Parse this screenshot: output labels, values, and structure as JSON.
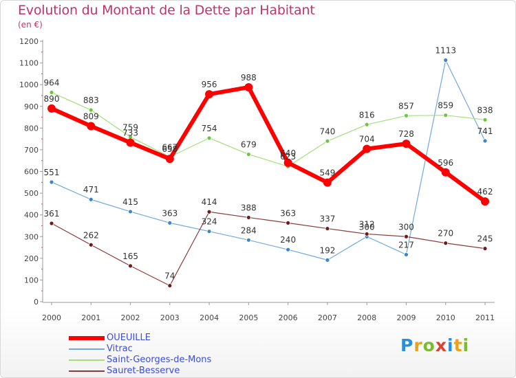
{
  "title": "Evolution du Montant de la Dette par Habitant",
  "subtitle": "(en €)",
  "logo": {
    "text": "Proxiti",
    "letters": [
      {
        "ch": "P",
        "color": "#2a8fd8"
      },
      {
        "ch": "r",
        "color": "#e8a21e"
      },
      {
        "ch": "o",
        "color": "#7cba2e"
      },
      {
        "ch": "x",
        "color": "#d9432f"
      },
      {
        "ch": "i",
        "color": "#2a8fd8"
      },
      {
        "ch": "t",
        "color": "#e8a21e"
      },
      {
        "ch": "i",
        "color": "#7cba2e"
      }
    ]
  },
  "chart_data": {
    "type": "line",
    "categories": [
      "2000",
      "2001",
      "2002",
      "2003",
      "2004",
      "2005",
      "2006",
      "2007",
      "2008",
      "2009",
      "2010",
      "2011"
    ],
    "ylim": [
      0,
      1200
    ],
    "yticks": [
      0,
      100,
      200,
      300,
      400,
      500,
      600,
      700,
      800,
      900,
      1000,
      1100,
      1200
    ],
    "grid": false,
    "legend_position": "bottom-left",
    "series": [
      {
        "name": "OUEUILLE",
        "color": "#ff0000",
        "marker_color": "#ff0000",
        "width": 6,
        "values": [
          890,
          809,
          733,
          658,
          956,
          988,
          640,
          549,
          704,
          728,
          596,
          462
        ]
      },
      {
        "name": "Vitrac",
        "color": "#6fa8dc",
        "marker_color": "#3d85c6",
        "width": 1.2,
        "values": [
          551,
          471,
          415,
          363,
          324,
          284,
          240,
          192,
          300,
          217,
          1113,
          741
        ]
      },
      {
        "name": "Saint-Georges-de-Mons",
        "color": "#a3e07a",
        "marker_color": "#6cc644",
        "width": 1.2,
        "values": [
          964,
          883,
          759,
          667,
          754,
          679,
          623,
          740,
          816,
          857,
          859,
          838
        ]
      },
      {
        "name": "Sauret-Besserve",
        "color": "#8b3a3a",
        "marker_color": "#6b1c1c",
        "width": 1.2,
        "values": [
          361,
          262,
          165,
          74,
          414,
          388,
          363,
          337,
          312,
          300,
          270,
          245
        ]
      }
    ]
  }
}
